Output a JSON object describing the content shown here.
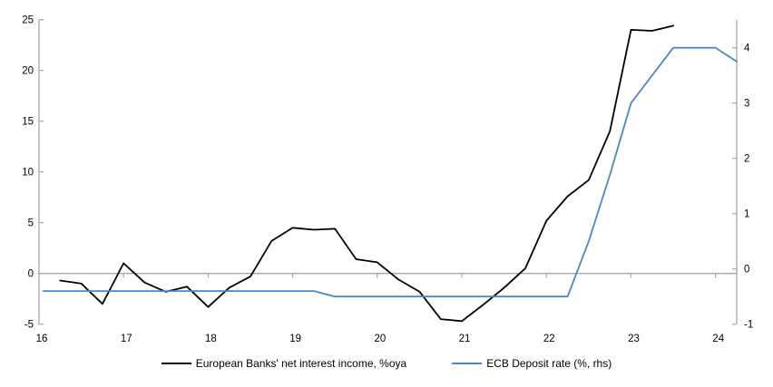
{
  "chart_data": {
    "type": "line",
    "title": "",
    "x_axis": {
      "tick_labels": [
        "16",
        "17",
        "18",
        "19",
        "20",
        "21",
        "22",
        "23",
        "24"
      ],
      "ticks": [
        16,
        17,
        18,
        19,
        20,
        21,
        22,
        23,
        24
      ],
      "range": [
        16,
        24.25
      ],
      "tick_position": "on-zero-line",
      "label_position": "bottom"
    },
    "left_axis": {
      "ticks": [
        -5,
        0,
        5,
        10,
        15,
        20,
        25
      ],
      "range": [
        -5,
        25
      ],
      "label": ""
    },
    "right_axis": {
      "ticks": [
        -1,
        0,
        1,
        2,
        3,
        4
      ],
      "range": [
        -1,
        4
      ],
      "label": ""
    },
    "grid": "zero-line-only",
    "legend_position": "bottom-center",
    "series": [
      {
        "name": "European Banks' net interest income, %oya",
        "axis": "left",
        "color": "#000000",
        "x": [
          16.25,
          16.5,
          16.75,
          17.0,
          17.25,
          17.5,
          17.75,
          18.0,
          18.25,
          18.5,
          18.75,
          19.0,
          19.25,
          19.5,
          19.75,
          20.0,
          20.25,
          20.5,
          20.75,
          21.0,
          21.25,
          21.5,
          21.75,
          22.0,
          22.25,
          22.5,
          22.75,
          23.0,
          23.25,
          23.5
        ],
        "values": [
          -0.7,
          -1.0,
          -3.0,
          1.0,
          -0.9,
          -1.8,
          -1.3,
          -3.3,
          -1.4,
          -0.3,
          3.2,
          4.5,
          4.3,
          4.4,
          1.4,
          1.1,
          -0.6,
          -1.8,
          -4.5,
          -4.7,
          -3.1,
          -1.4,
          0.5,
          5.2,
          7.6,
          9.2,
          14.0,
          24.0,
          23.9,
          24.4
        ]
      },
      {
        "name": "ECB Deposit rate (%, rhs)",
        "axis": "right",
        "color": "#4a86c8",
        "x": [
          16.05,
          16.25,
          16.5,
          16.75,
          17.0,
          17.25,
          17.5,
          17.75,
          18.0,
          18.25,
          18.5,
          18.75,
          19.0,
          19.25,
          19.5,
          19.75,
          20.0,
          20.25,
          20.5,
          20.75,
          21.0,
          21.25,
          21.5,
          21.75,
          22.0,
          22.25,
          22.5,
          22.75,
          23.0,
          23.25,
          23.5,
          23.75,
          24.0,
          24.25
        ],
        "values": [
          -0.4,
          -0.4,
          -0.4,
          -0.4,
          -0.4,
          -0.4,
          -0.4,
          -0.4,
          -0.4,
          -0.4,
          -0.4,
          -0.4,
          -0.4,
          -0.4,
          -0.5,
          -0.5,
          -0.5,
          -0.5,
          -0.5,
          -0.5,
          -0.5,
          -0.5,
          -0.5,
          -0.5,
          -0.5,
          -0.5,
          0.5,
          1.7,
          3.0,
          3.5,
          4.0,
          4.0,
          4.0,
          3.75
        ]
      }
    ],
    "colors": {
      "axis": "#a6a6a6",
      "zero_line": "#a6a6a6",
      "text": "#000000"
    }
  },
  "legend": {
    "items": [
      {
        "label": "European Banks' net interest income, %oya"
      },
      {
        "label": "ECB Deposit rate (%, rhs)"
      }
    ]
  }
}
